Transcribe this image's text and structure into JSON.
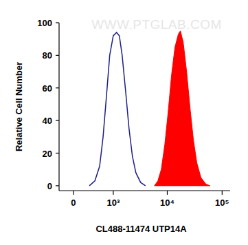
{
  "chart_data": {
    "type": "line",
    "x_label": "CL488-11474 UTP14A",
    "y_label": "Relative Cell Number",
    "annotations": [
      "WWW.PTGLAB.COM"
    ],
    "log": "x",
    "xlim": [
      -250,
      140000
    ],
    "xticks": [
      0,
      {
        "value": 1000,
        "label": "10³"
      },
      {
        "value": 10000,
        "label": "10⁴"
      },
      {
        "value": 100000,
        "label": "10⁵"
      }
    ],
    "ylim": [
      -3,
      100
    ],
    "yticks": [
      0,
      20,
      40,
      60,
      80,
      100
    ],
    "grid": false,
    "series": [
      {
        "type": "line",
        "color": "#1c1f8a",
        "x": [
          280,
          400,
          520,
          620,
          730,
          850,
          1000,
          1160,
          1310,
          1480,
          1720,
          1990,
          2300,
          2660,
          3260,
          3990
        ],
        "values": [
          0,
          3,
          12,
          30,
          55,
          80,
          92,
          94,
          92,
          80,
          58,
          35,
          18,
          8,
          2,
          0
        ]
      },
      {
        "type": "area",
        "color": "#ff0000",
        "x": [
          5830,
          6730,
          7770,
          8990,
          10360,
          11970,
          13810,
          15900,
          17360,
          19540,
          22540,
          25960,
          30000,
          34630,
          41100,
          50700,
          60000
        ],
        "values": [
          0,
          3,
          10,
          25,
          45,
          68,
          85,
          93,
          95,
          88,
          70,
          48,
          28,
          14,
          5,
          1,
          0
        ]
      }
    ]
  }
}
